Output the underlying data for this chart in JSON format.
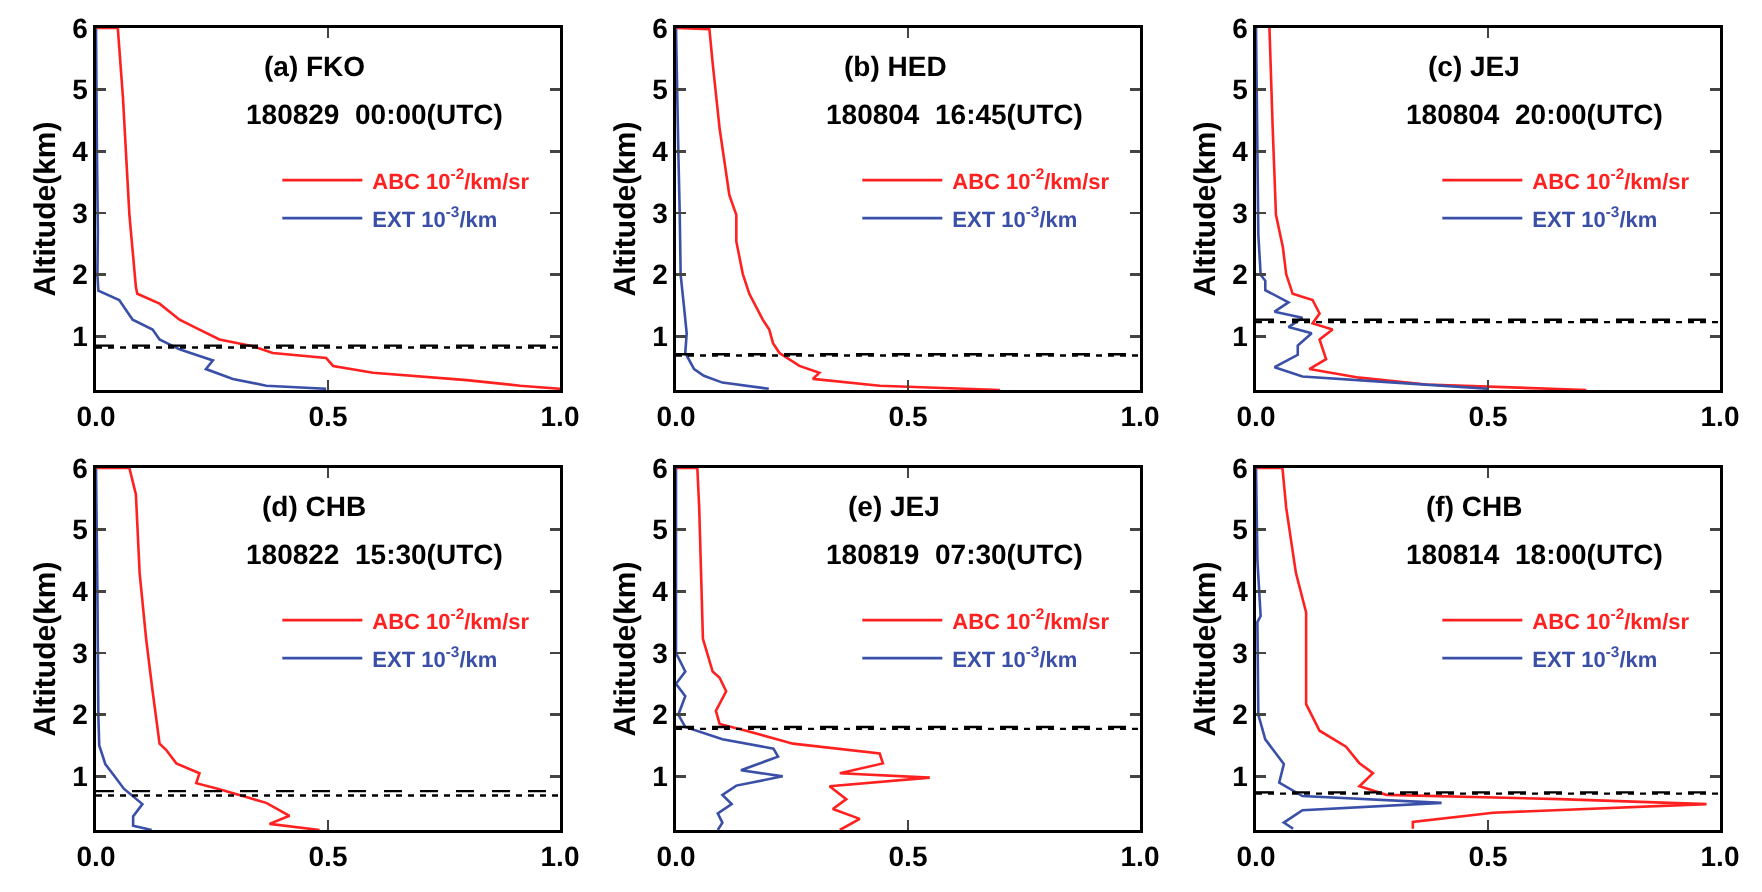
{
  "chart_data": [
    {
      "type": "line",
      "title": "(a) FKO",
      "subtitle": "180829  00:00(UTC)",
      "ylabel": "Altitude(km)",
      "legend": "top right",
      "grid": false,
      "xlim": [
        0,
        1
      ],
      "xticks": [
        {
          "value": 0,
          "label": "0.0"
        },
        {
          "value": 0.5,
          "label": "0.5"
        },
        {
          "value": 1,
          "label": "1.0"
        }
      ],
      "ylim": [
        0.13,
        6
      ],
      "yticks": [
        1,
        2,
        3,
        4,
        5,
        6
      ],
      "ref_lines": [
        {
          "axis": "y",
          "value": 0.85,
          "line_style": "dashed",
          "color": "#000000"
        },
        {
          "axis": "y",
          "value": 0.82,
          "line_style": "dotted",
          "color": "#000000"
        }
      ],
      "series": [
        {
          "name": "ABC 10$^{-2}$/km/sr",
          "color": "#ff2020",
          "x": [
            0,
            0.047,
            0.058,
            0.072,
            0.086,
            0.089,
            0.137,
            0.18,
            0.223,
            0.266,
            0.338,
            0.381,
            0.496,
            0.511,
            0.597,
            0.799,
            0.914,
            1.0
          ],
          "values": [
            6.0,
            6.0,
            4.88,
            2.97,
            1.8,
            1.69,
            1.53,
            1.27,
            1.11,
            0.95,
            0.84,
            0.73,
            0.65,
            0.52,
            0.41,
            0.29,
            0.2,
            0.15
          ]
        },
        {
          "name": "EXT 10$^{-3}$/km",
          "color": "#3a4fa8",
          "x": [
            0,
            0.002,
            0.004,
            0.003,
            0.005,
            0.05,
            0.079,
            0.122,
            0.137,
            0.18,
            0.223,
            0.252,
            0.237,
            0.295,
            0.367,
            0.496
          ],
          "values": [
            6.0,
            4.0,
            2.7,
            2.0,
            1.74,
            1.59,
            1.27,
            1.11,
            0.95,
            0.79,
            0.68,
            0.61,
            0.47,
            0.31,
            0.2,
            0.15
          ]
        }
      ]
    },
    {
      "type": "line",
      "title": "(b) HED",
      "subtitle": "180804  16:45(UTC)",
      "ylabel": "Altitude(km)",
      "legend": "top right",
      "grid": false,
      "xlim": [
        0,
        1
      ],
      "xticks": [
        {
          "value": 0,
          "label": "0.0"
        },
        {
          "value": 0.5,
          "label": "0.5"
        },
        {
          "value": 1,
          "label": "1.0"
        }
      ],
      "ylim": [
        0.13,
        6
      ],
      "yticks": [
        1,
        2,
        3,
        4,
        5,
        6
      ],
      "ref_lines": [
        {
          "axis": "y",
          "value": 0.71,
          "line_style": "dashed",
          "color": "#000000"
        },
        {
          "axis": "y",
          "value": 0.69,
          "line_style": "dotted",
          "color": "#000000"
        }
      ],
      "series": [
        {
          "name": "ABC 10$^{-2}$/km/sr",
          "color": "#ff2020",
          "x": [
            0,
            0.072,
            0.079,
            0.094,
            0.115,
            0.13,
            0.13,
            0.144,
            0.158,
            0.187,
            0.201,
            0.209,
            0.223,
            0.266,
            0.309,
            0.295,
            0.439,
            0.698
          ],
          "values": [
            6.0,
            5.98,
            5.43,
            4.37,
            3.29,
            2.97,
            2.54,
            2.01,
            1.69,
            1.27,
            1.11,
            0.89,
            0.73,
            0.52,
            0.41,
            0.31,
            0.2,
            0.13
          ]
        },
        {
          "name": "EXT 10$^{-3}$/km",
          "color": "#3a4fa8",
          "x": [
            0,
            0.005,
            0.008,
            0.01,
            0.017,
            0.023,
            0.02,
            0.039,
            0.06,
            0.1,
            0.2
          ],
          "values": [
            6.0,
            4.0,
            3.0,
            2.0,
            1.5,
            1.05,
            0.73,
            0.47,
            0.36,
            0.25,
            0.15
          ]
        }
      ]
    },
    {
      "type": "line",
      "title": "(c) JEJ",
      "subtitle": "180804  20:00(UTC)",
      "ylabel": "Altitude(km)",
      "legend": "top right",
      "grid": false,
      "xlim": [
        0,
        1
      ],
      "xticks": [
        {
          "value": 0,
          "label": "0.0"
        },
        {
          "value": 0.5,
          "label": "0.5"
        },
        {
          "value": 1,
          "label": "1.0"
        }
      ],
      "ylim": [
        0.13,
        6
      ],
      "yticks": [
        1,
        2,
        3,
        4,
        5,
        6
      ],
      "ref_lines": [
        {
          "axis": "y",
          "value": 1.27,
          "line_style": "dashed",
          "color": "#000000"
        },
        {
          "axis": "y",
          "value": 1.23,
          "line_style": "dotted",
          "color": "#000000"
        }
      ],
      "series": [
        {
          "name": "ABC 10$^{-2}$/km/sr",
          "color": "#ff2020",
          "x": [
            0.029,
            0.036,
            0.043,
            0.058,
            0.065,
            0.079,
            0.122,
            0.137,
            0.122,
            0.165,
            0.137,
            0.151,
            0.115,
            0.223,
            0.367,
            0.712
          ],
          "values": [
            6.0,
            4.37,
            2.97,
            2.44,
            2.01,
            1.69,
            1.59,
            1.37,
            1.21,
            1.11,
            0.95,
            0.63,
            0.47,
            0.33,
            0.22,
            0.13
          ]
        },
        {
          "name": "EXT 10$^{-3}$/km",
          "color": "#3a4fa8",
          "x": [
            0,
            0.003,
            0.005,
            0.01,
            0.02,
            0.02,
            0.07,
            0.04,
            0.1,
            0.07,
            0.12,
            0.09,
            0.09,
            0.04,
            0.1,
            0.3,
            0.5
          ],
          "values": [
            6.0,
            4.0,
            2.65,
            2.0,
            1.9,
            1.75,
            1.55,
            1.4,
            1.3,
            1.15,
            1.05,
            0.85,
            0.7,
            0.5,
            0.35,
            0.25,
            0.15
          ]
        }
      ]
    },
    {
      "type": "line",
      "title": "(d) CHB",
      "subtitle": "180822  15:30(UTC)",
      "ylabel": "Altitude(km)",
      "legend": "top right",
      "grid": false,
      "xlim": [
        0,
        1
      ],
      "xticks": [
        {
          "value": 0,
          "label": "0.0"
        },
        {
          "value": 0.5,
          "label": "0.5"
        },
        {
          "value": 1,
          "label": "1.0"
        }
      ],
      "ylim": [
        0.13,
        6
      ],
      "yticks": [
        1,
        2,
        3,
        4,
        5,
        6
      ],
      "ref_lines": [
        {
          "axis": "y",
          "value": 0.76,
          "line_style": "dashed",
          "color": "#000000"
        },
        {
          "axis": "y",
          "value": 0.69,
          "line_style": "dotted",
          "color": "#000000"
        }
      ],
      "series": [
        {
          "name": "ABC 10$^{-2}$/km/sr",
          "color": "#ff2020",
          "x": [
            0,
            0.072,
            0.086,
            0.094,
            0.108,
            0.122,
            0.137,
            0.151,
            0.173,
            0.223,
            0.216,
            0.266,
            0.367,
            0.417,
            0.374,
            0.482
          ],
          "values": [
            6.0,
            6.0,
            5.57,
            4.3,
            3.23,
            2.38,
            1.53,
            1.43,
            1.21,
            1.05,
            0.89,
            0.79,
            0.57,
            0.36,
            0.23,
            0.13
          ]
        },
        {
          "name": "EXT 10$^{-3}$/km",
          "color": "#3a4fa8",
          "x": [
            0,
            0.003,
            0.005,
            0.007,
            0.02,
            0.04,
            0.06,
            0.1,
            0.08,
            0.08,
            0.12
          ],
          "values": [
            6.0,
            4.0,
            2.0,
            1.5,
            1.2,
            1.0,
            0.8,
            0.55,
            0.35,
            0.2,
            0.13
          ]
        }
      ]
    },
    {
      "type": "line",
      "title": "(e) JEJ",
      "subtitle": "180819  07:30(UTC)",
      "ylabel": "Altitude(km)",
      "legend": "top right",
      "grid": false,
      "xlim": [
        0,
        1
      ],
      "xticks": [
        {
          "value": 0,
          "label": "0.0"
        },
        {
          "value": 0.5,
          "label": "0.5"
        },
        {
          "value": 1,
          "label": "1.0"
        }
      ],
      "ylim": [
        0.13,
        6
      ],
      "yticks": [
        1,
        2,
        3,
        4,
        5,
        6
      ],
      "ref_lines": [
        {
          "axis": "y",
          "value": 1.8,
          "line_style": "dashed",
          "color": "#000000"
        },
        {
          "axis": "y",
          "value": 1.77,
          "line_style": "dotted",
          "color": "#000000"
        }
      ],
      "series": [
        {
          "name": "ABC 10$^{-2}$/km/sr",
          "color": "#ff2020",
          "x": [
            0,
            0.046,
            0.05,
            0.058,
            0.079,
            0.094,
            0.108,
            0.086,
            0.094,
            0.151,
            0.252,
            0.439,
            0.446,
            0.353,
            0.547,
            0.331,
            0.367,
            0.338,
            0.396,
            0.353
          ],
          "values": [
            6.0,
            6.0,
            5.36,
            3.23,
            2.7,
            2.6,
            2.38,
            2.06,
            1.85,
            1.74,
            1.53,
            1.37,
            1.21,
            1.05,
            0.98,
            0.84,
            0.63,
            0.47,
            0.31,
            0.13
          ]
        },
        {
          "name": "EXT 10$^{-3}$/km",
          "color": "#3a4fa8",
          "x": [
            0,
            0,
            0.02,
            0,
            0.02,
            0.005,
            0.02,
            0.1,
            0.21,
            0.22,
            0.14,
            0.23,
            0.13,
            0.1,
            0.12,
            0.09,
            0.1,
            0.09
          ],
          "values": [
            6.0,
            3.0,
            2.7,
            2.5,
            2.3,
            2.0,
            1.8,
            1.6,
            1.45,
            1.32,
            1.1,
            1.0,
            0.85,
            0.7,
            0.55,
            0.4,
            0.25,
            0.13
          ]
        }
      ]
    },
    {
      "type": "line",
      "title": "(f) CHB",
      "subtitle": "180814  18:00(UTC)",
      "ylabel": "Altitude(km)",
      "legend": "top right",
      "grid": false,
      "xlim": [
        0,
        1
      ],
      "xticks": [
        {
          "value": 0,
          "label": "0.0"
        },
        {
          "value": 0.5,
          "label": "0.5"
        },
        {
          "value": 1,
          "label": "1.0"
        }
      ],
      "ylim": [
        0.13,
        6
      ],
      "yticks": [
        1,
        2,
        3,
        4,
        5,
        6
      ],
      "ref_lines": [
        {
          "axis": "y",
          "value": 0.74,
          "line_style": "dashed",
          "color": "#000000"
        },
        {
          "axis": "y",
          "value": 0.72,
          "line_style": "dotted",
          "color": "#000000"
        }
      ],
      "series": [
        {
          "name": "ABC 10$^{-2}$/km/sr",
          "color": "#ff2020",
          "x": [
            0,
            0.057,
            0.065,
            0.086,
            0.108,
            0.108,
            0.137,
            0.194,
            0.223,
            0.252,
            0.223,
            0.281,
            0.655,
            0.971,
            0.511,
            0.338,
            0.338
          ],
          "values": [
            6.0,
            6.0,
            5.36,
            4.3,
            3.66,
            2.17,
            1.74,
            1.48,
            1.21,
            1.05,
            0.84,
            0.7,
            0.63,
            0.55,
            0.41,
            0.26,
            0.15
          ]
        },
        {
          "name": "EXT 10$^{-3}$/km",
          "color": "#3a4fa8",
          "x": [
            0,
            0.003,
            0.01,
            0.003,
            0.005,
            0.02,
            0.06,
            0.05,
            0.1,
            0.4,
            0.1,
            0.06,
            0.08
          ],
          "values": [
            6.0,
            4.5,
            3.6,
            3.5,
            2.0,
            1.6,
            1.2,
            0.9,
            0.68,
            0.57,
            0.45,
            0.25,
            0.15
          ]
        }
      ]
    }
  ]
}
